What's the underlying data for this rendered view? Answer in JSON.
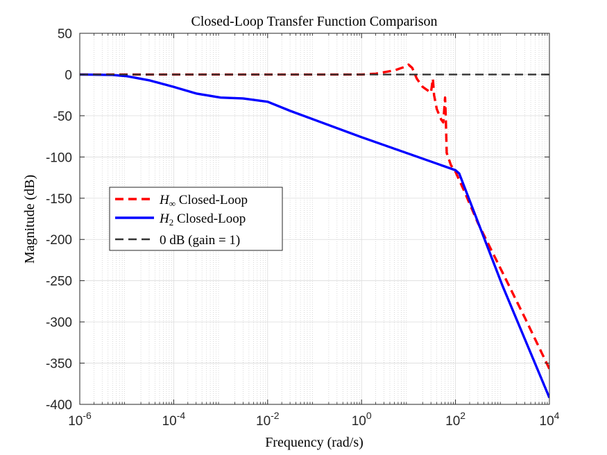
{
  "chart_data": {
    "type": "line",
    "title": "Closed-Loop Transfer Function Comparison",
    "xlabel": "Frequency (rad/s)",
    "ylabel": "Magnitude (dB)",
    "xscale": "log",
    "xlim": [
      1e-06,
      10000
    ],
    "ylim": [
      -400,
      50
    ],
    "grid": true,
    "minor_grid": true,
    "legend_position": "middle-left",
    "x_ticks": [
      {
        "base": "10",
        "exp": "-6"
      },
      {
        "base": "10",
        "exp": "-4"
      },
      {
        "base": "10",
        "exp": "-2"
      },
      {
        "base": "10",
        "exp": "0"
      },
      {
        "base": "10",
        "exp": "2"
      },
      {
        "base": "10",
        "exp": "4"
      }
    ],
    "y_ticks": [
      "50",
      "0",
      "-50",
      "-100",
      "-150",
      "-200",
      "-250",
      "-300",
      "-350",
      "-400"
    ],
    "series": [
      {
        "name_math": "H",
        "name_sub": "∞",
        "name_text": " Closed-Loop",
        "color": "#ff0000",
        "style": "dashed",
        "x": [
          1e-06,
          1e-05,
          0.001,
          0.1,
          1,
          2,
          5,
          9,
          10,
          12,
          15,
          20,
          30,
          33,
          35,
          40,
          50,
          55,
          60,
          62,
          65,
          80,
          100,
          150,
          300,
          1000,
          3000,
          10000
        ],
        "y": [
          0,
          0,
          0,
          0,
          0,
          1,
          5,
          10,
          12,
          8,
          -5,
          -15,
          -22,
          -5,
          -25,
          -42,
          -55,
          -58,
          -28,
          -50,
          -95,
          -110,
          -118,
          -140,
          -180,
          -240,
          -295,
          -357
        ]
      },
      {
        "name_math": "H",
        "name_sub": "2",
        "name_text": " Closed-Loop",
        "color": "#0000ff",
        "style": "solid",
        "x": [
          1e-06,
          5e-06,
          1e-05,
          3e-05,
          0.0001,
          0.0003,
          0.001,
          0.003,
          0.01,
          0.03,
          0.1,
          1,
          10,
          100,
          120,
          1000,
          10000
        ],
        "y": [
          0,
          -0.5,
          -2,
          -7,
          -15,
          -23,
          -28,
          -29,
          -33,
          -44,
          -55,
          -76,
          -96,
          -116,
          -120,
          -256,
          -392
        ]
      },
      {
        "name_math": "",
        "name_sub": "",
        "name_text": "0 dB (gain = 1)",
        "color": "#333333",
        "style": "dashed",
        "x": [
          1e-06,
          10000
        ],
        "y": [
          0,
          0
        ]
      }
    ]
  }
}
